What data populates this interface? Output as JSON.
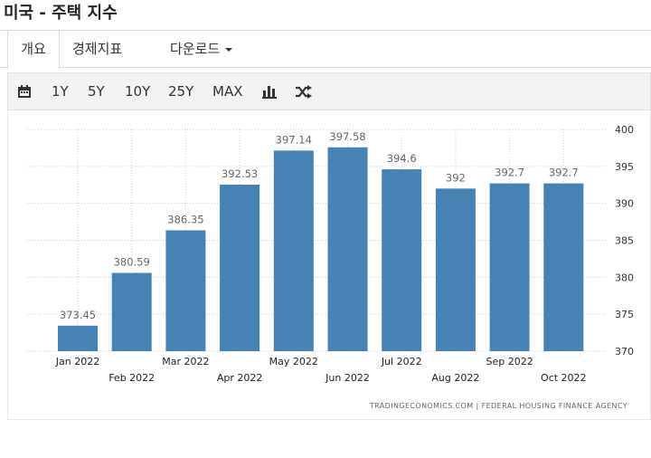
{
  "header": {
    "title": "미국 - 주택 지수"
  },
  "tabs": [
    "개요",
    "경제지표",
    "다운로드"
  ],
  "toolbar": [
    "1Y",
    "5Y",
    "10Y",
    "25Y",
    "MAX"
  ],
  "chart_data": {
    "type": "bar",
    "categories": [
      "Jan 2022",
      "Feb 2022",
      "Mar 2022",
      "Apr 2022",
      "May 2022",
      "Jun 2022",
      "Jul 2022",
      "Aug 2022",
      "Sep 2022",
      "Oct 2022"
    ],
    "values": [
      373.45,
      380.59,
      386.35,
      392.53,
      397.14,
      397.58,
      394.6,
      392,
      392.7,
      392.7
    ],
    "color": "#4682b4",
    "ylim": [
      370,
      400
    ],
    "yticks": [
      370,
      375,
      380,
      385,
      390,
      395,
      400
    ],
    "grid": true,
    "source": "TRADINGECONOMICS.COM | FEDERAL HOUSING FINANCE AGENCY"
  }
}
